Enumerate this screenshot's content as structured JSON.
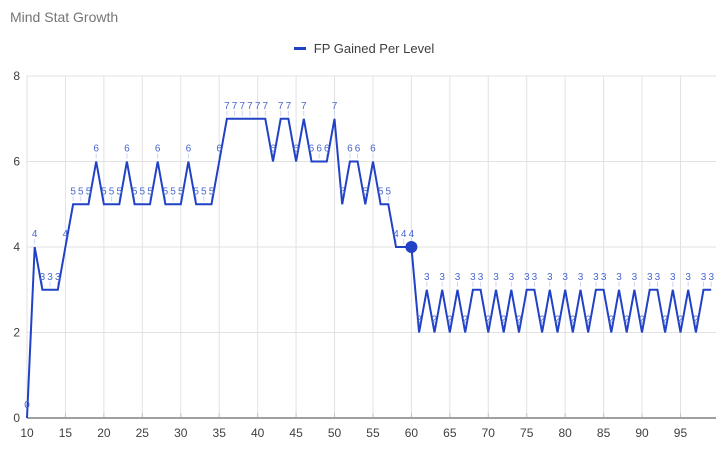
{
  "header": {
    "title": "Mind Stat Growth"
  },
  "legend": {
    "label": "FP Gained Per Level"
  },
  "chart_data": {
    "type": "line",
    "title": "Mind Stat Growth",
    "xlabel": "",
    "ylabel": "",
    "legend_position": "top",
    "grid": true,
    "data_labels": true,
    "xlim": [
      10,
      99.62
    ],
    "ylim": [
      0,
      8
    ],
    "x_ticks": [
      10,
      15,
      20,
      25,
      30,
      35,
      40,
      45,
      50,
      55,
      60,
      65,
      70,
      75,
      80,
      85,
      90,
      95
    ],
    "y_ticks": [
      0,
      2,
      4,
      6,
      8
    ],
    "x": [
      10,
      11,
      12,
      13,
      14,
      15,
      16,
      17,
      18,
      19,
      20,
      21,
      22,
      23,
      24,
      25,
      26,
      27,
      28,
      29,
      30,
      31,
      32,
      33,
      34,
      35,
      36,
      37,
      38,
      39,
      40,
      41,
      42,
      43,
      44,
      45,
      46,
      47,
      48,
      49,
      50,
      51,
      52,
      53,
      54,
      55,
      56,
      57,
      58,
      59,
      60,
      61,
      62,
      63,
      64,
      65,
      66,
      67,
      68,
      69,
      70,
      71,
      72,
      73,
      74,
      75,
      76,
      77,
      78,
      79,
      80,
      81,
      82,
      83,
      84,
      85,
      86,
      87,
      88,
      89,
      90,
      91,
      92,
      93,
      94,
      95,
      96,
      97,
      98,
      99
    ],
    "series": [
      {
        "name": "FP Gained Per Level",
        "color": "#2142c6",
        "values": [
          0,
          4,
          3,
          3,
          3,
          4,
          5,
          5,
          5,
          6,
          5,
          5,
          5,
          6,
          5,
          5,
          5,
          6,
          5,
          5,
          5,
          6,
          5,
          5,
          5,
          6,
          7,
          7,
          7,
          7,
          7,
          7,
          6,
          7,
          7,
          6,
          7,
          6,
          6,
          6,
          7,
          5,
          6,
          6,
          5,
          6,
          5,
          5,
          4,
          4,
          4,
          2,
          3,
          2,
          3,
          2,
          3,
          2,
          3,
          3,
          2,
          3,
          2,
          3,
          2,
          3,
          3,
          2,
          3,
          2,
          3,
          2,
          3,
          2,
          3,
          3,
          2,
          3,
          2,
          3,
          2,
          3,
          3,
          2,
          3,
          2,
          3,
          2,
          3,
          3
        ]
      }
    ],
    "selected_point": {
      "x": 60,
      "y": 4
    },
    "colors": {
      "line": "#2142c6",
      "data_label": "#4a67cf",
      "label_leader": "#c9d4ee",
      "gridline": "#e2e2e2",
      "axis_line": "#a0a0a0",
      "tick": "#c4c4c4",
      "axis_text": "#404040",
      "title_text": "#757575",
      "legend_text": "#3c4043",
      "selected_dot": "#2142c6",
      "background": "#ffffff"
    }
  }
}
